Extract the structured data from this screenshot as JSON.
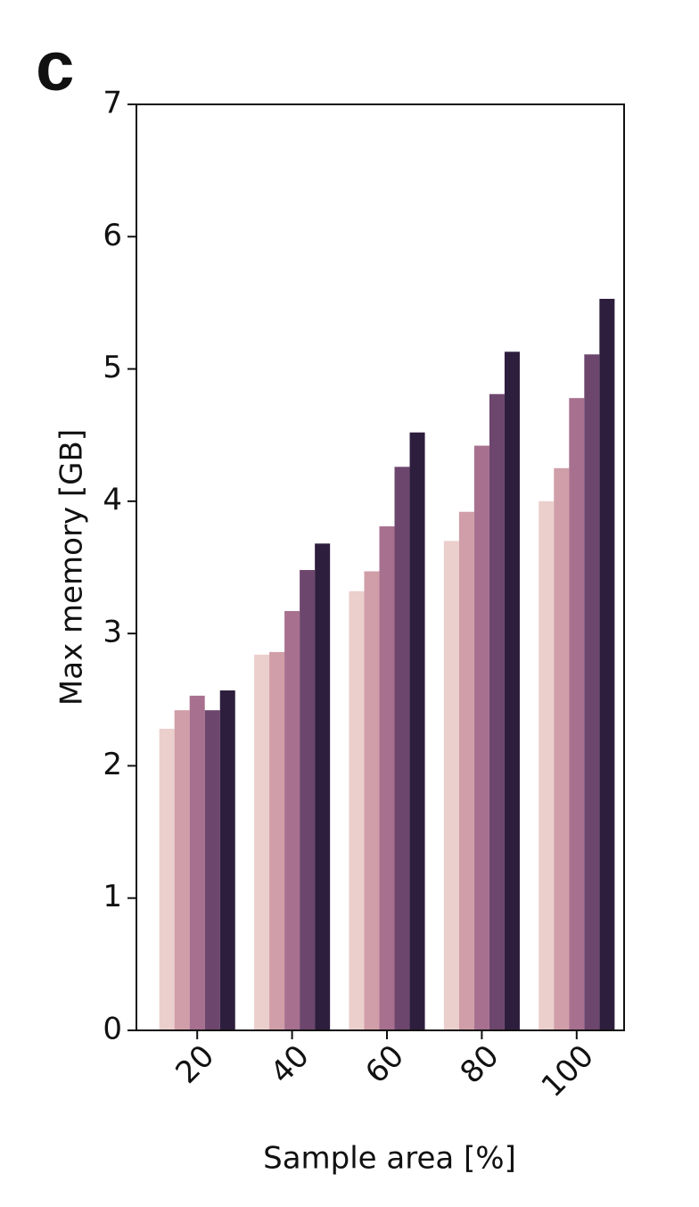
{
  "chart_data": {
    "type": "bar",
    "panel_label": "c",
    "xlabel": "Sample area [%]",
    "ylabel": "Max memory [GB]",
    "categories": [
      "20",
      "40",
      "60",
      "80",
      "100"
    ],
    "series": [
      {
        "color": "#ebcfcc",
        "values": [
          2.28,
          2.84,
          3.32,
          3.7,
          4.0
        ]
      },
      {
        "color": "#d09ea8",
        "values": [
          2.42,
          2.86,
          3.47,
          3.92,
          4.25
        ]
      },
      {
        "color": "#a8708f",
        "values": [
          2.53,
          3.17,
          3.81,
          4.42,
          4.78
        ]
      },
      {
        "color": "#6d466e",
        "values": [
          2.42,
          3.48,
          4.26,
          4.81,
          5.11
        ]
      },
      {
        "color": "#2e1e3d",
        "values": [
          2.57,
          3.68,
          4.52,
          5.13,
          5.53
        ]
      }
    ],
    "ylim": [
      0,
      7
    ],
    "yticks": [
      0,
      1,
      2,
      3,
      4,
      5,
      6,
      7
    ],
    "grid": false
  }
}
